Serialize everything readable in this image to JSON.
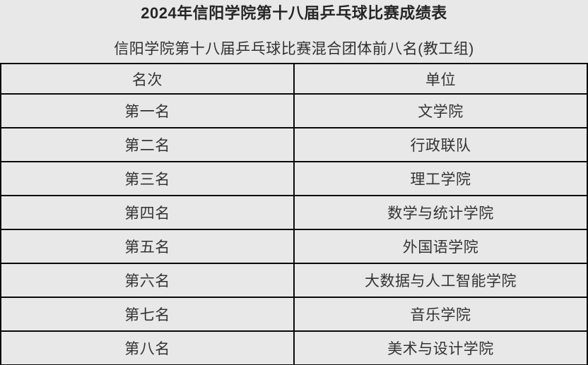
{
  "page": {
    "title": "2024年信阳学院第十八届乒乓球比赛成绩表",
    "subtitle": "信阳学院第十八届乒乓球比赛混合团体前八名(教工组)"
  },
  "table": {
    "headers": [
      "名次",
      "单位"
    ],
    "rows": [
      [
        "第一名",
        "文学院"
      ],
      [
        "第二名",
        "行政联队"
      ],
      [
        "第三名",
        "理工学院"
      ],
      [
        "第四名",
        "数学与统计学院"
      ],
      [
        "第五名",
        "外国语学院"
      ],
      [
        "第六名",
        "大数据与人工智能学院"
      ],
      [
        "第七名",
        "音乐学院"
      ],
      [
        "第八名",
        "美术与设计学院"
      ]
    ]
  },
  "colors": {
    "background": "#e8e8e8",
    "border": "#0a0a0a",
    "title_text": "#262626",
    "cell_text": "#333333"
  }
}
